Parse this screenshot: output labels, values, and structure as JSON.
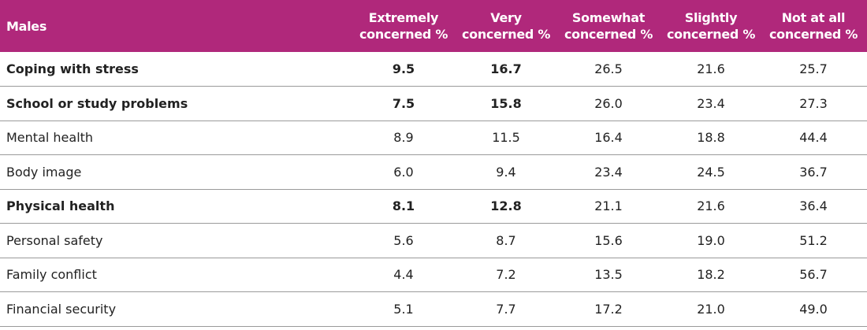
{
  "table": {
    "headers": [
      "Males",
      "Extremely concerned %",
      "Very concerned %",
      "Somewhat concerned %",
      "Slightly concerned %",
      "Not at all concerned %"
    ],
    "rows": [
      {
        "label": "Coping with stress",
        "values": [
          "9.5",
          "16.7",
          "26.5",
          "21.6",
          "25.7"
        ],
        "bold": true
      },
      {
        "label": "School or study problems",
        "values": [
          "7.5",
          "15.8",
          "26.0",
          "23.4",
          "27.3"
        ],
        "bold": true
      },
      {
        "label": "Mental health",
        "values": [
          "8.9",
          "11.5",
          "16.4",
          "18.8",
          "44.4"
        ],
        "bold": false
      },
      {
        "label": "Body image",
        "values": [
          "6.0",
          "9.4",
          "23.4",
          "24.5",
          "36.7"
        ],
        "bold": false
      },
      {
        "label": "Physical health",
        "values": [
          "8.1",
          "12.8",
          "21.1",
          "21.6",
          "36.4"
        ],
        "bold": true
      },
      {
        "label": "Personal safety",
        "values": [
          "5.6",
          "8.7",
          "15.6",
          "19.0",
          "51.2"
        ],
        "bold": false
      },
      {
        "label": "Family conflict",
        "values": [
          "4.4",
          "7.2",
          "13.5",
          "18.2",
          "56.7"
        ],
        "bold": false
      },
      {
        "label": "Financial security",
        "values": [
          "5.1",
          "7.7",
          "17.2",
          "21.0",
          "49.0"
        ],
        "bold": false
      }
    ]
  },
  "colors": {
    "header_background": "#b0287b",
    "header_text": "#ffffff",
    "row_divider": "#9a9a9a"
  }
}
